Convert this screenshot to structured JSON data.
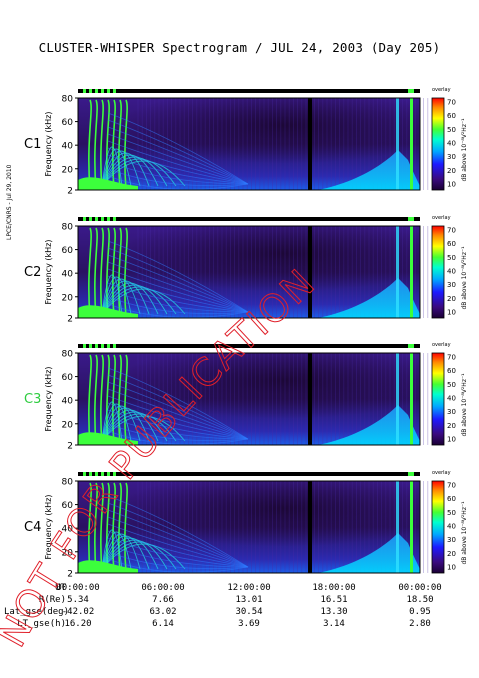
{
  "title": "CLUSTER-WHISPER Spectrogram / JUL 24, 2003 (Day 205)",
  "side_label": "LPCE/CNRS - Jul 29, 2010",
  "colorbar": {
    "ticks": [
      70,
      60,
      50,
      40,
      30,
      20,
      10
    ],
    "label": "dB above 10⁻⁸V²Hz⁻¹",
    "top_label": "overlay"
  },
  "watermark": "NOT FOR PUBLICATION",
  "chart_data": [
    {
      "type": "heatmap",
      "panel": "C1",
      "ylabel": "Frequency (kHz)",
      "yticks": [
        80,
        60,
        40,
        20,
        2
      ],
      "ylim": [
        2,
        80
      ],
      "panel_color": "#000000"
    },
    {
      "type": "heatmap",
      "panel": "C2",
      "ylabel": "Frequency (kHz)",
      "yticks": [
        80,
        60,
        40,
        20,
        2
      ],
      "ylim": [
        2,
        80
      ],
      "panel_color": "#000000"
    },
    {
      "type": "heatmap",
      "panel": "C3",
      "ylabel": "Frequency (kHz)",
      "yticks": [
        80,
        60,
        40,
        20,
        2
      ],
      "ylim": [
        2,
        80
      ],
      "panel_color": "#2ecc40"
    },
    {
      "type": "heatmap",
      "panel": "C4",
      "ylabel": "Frequency (kHz)",
      "yticks": [
        80,
        60,
        40,
        20,
        2
      ],
      "ylim": [
        2,
        80
      ],
      "panel_color": "#000000"
    }
  ],
  "footer": {
    "rows": [
      {
        "label": "UT",
        "values": [
          "00:00:00",
          "06:00:00",
          "12:00:00",
          "18:00:00",
          "00:00:00"
        ]
      },
      {
        "label": "R(Re)",
        "values": [
          "5.34",
          "7.66",
          "13.01",
          "16.51",
          "18.50"
        ]
      },
      {
        "label": "Lat_gse(deg)",
        "values": [
          "-42.02",
          "63.02",
          "30.54",
          "13.30",
          "0.95"
        ]
      },
      {
        "label": "LT_gse(h)",
        "values": [
          "16.20",
          "6.14",
          "3.69",
          "3.14",
          "2.80"
        ]
      }
    ]
  }
}
